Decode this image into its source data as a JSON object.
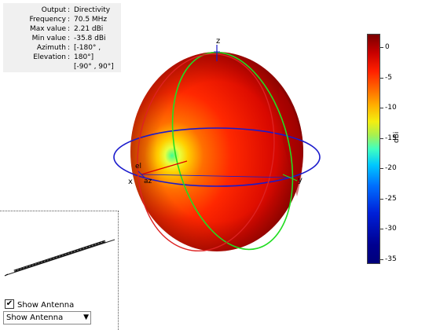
{
  "info": {
    "rows": [
      {
        "label": "Output",
        "value": "Directivity"
      },
      {
        "label": "Frequency",
        "value": "70.5 MHz"
      },
      {
        "label": "Max value",
        "value": "2.21 dBi"
      },
      {
        "label": "Min value",
        "value": "-35.8 dBi"
      },
      {
        "label": "Azimuth",
        "value": "[-180° ,"
      },
      {
        "label": "Elevation",
        "value": "180°]"
      },
      {
        "label": "",
        "value": "[-90° , 90°]"
      }
    ],
    "separator": ":"
  },
  "axes": {
    "x": "x",
    "y": "y",
    "z": "z",
    "az": "az",
    "el": "el"
  },
  "colorbar": {
    "unit": "dBi",
    "ticks": [
      "0",
      "-5",
      "-10",
      "-15",
      "-20",
      "-25",
      "-30",
      "-35"
    ],
    "tick_values": [
      0,
      -5,
      -10,
      -15,
      -20,
      -25,
      -30,
      -35
    ],
    "max": 2.21,
    "min": -35.8
  },
  "antenna_panel": {
    "checkbox_label": "Show Antenna",
    "checkbox_checked": true,
    "checkbox_mark": "✔",
    "select_value": "Show Antenna",
    "select_arrow": "▼"
  },
  "colors": {
    "azimuth_circle": "#1a1acc",
    "elevation_green": "#22dd22",
    "elevation_red": "#dd2222",
    "axis_red": "#dd0000"
  }
}
